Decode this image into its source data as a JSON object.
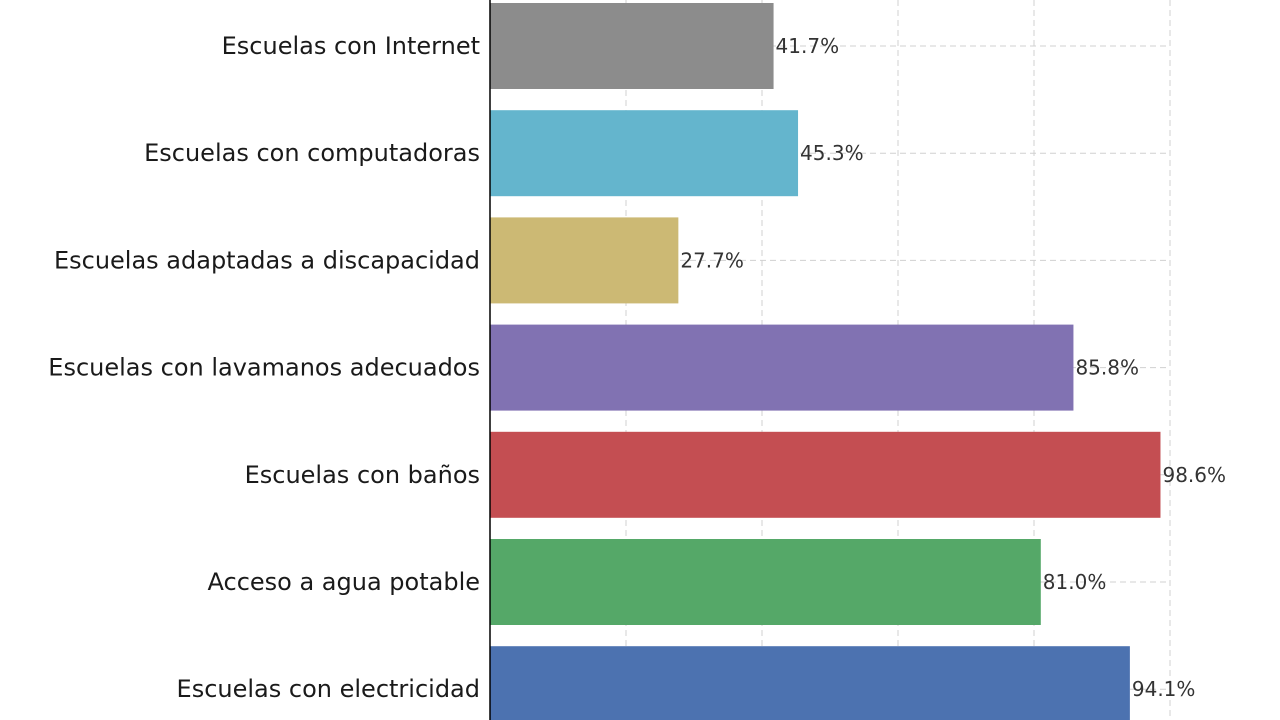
{
  "chart_data": {
    "type": "bar",
    "orientation": "horizontal",
    "title": "",
    "xlabel": "",
    "ylabel": "",
    "categories": [
      "Escuelas con Internet",
      "Escuelas con computadoras",
      "Escuelas adaptadas a discapacidad",
      "Escuelas con lavamanos adecuados",
      "Escuelas con baños",
      "Acceso a agua potable",
      "Escuelas con electricidad"
    ],
    "values": [
      41.7,
      45.3,
      27.7,
      85.8,
      98.6,
      81.0,
      94.1
    ],
    "value_labels": [
      "41.7%",
      "45.3%",
      "27.7%",
      "85.8%",
      "98.6%",
      "81.0%",
      "94.1%"
    ],
    "colors": [
      "#8c8c8c",
      "#64b5cd",
      "#ccb974",
      "#8172b2",
      "#c44e52",
      "#55a868",
      "#4c72b0"
    ],
    "xlim": [
      0,
      100
    ],
    "grid": true,
    "legend": "none"
  }
}
